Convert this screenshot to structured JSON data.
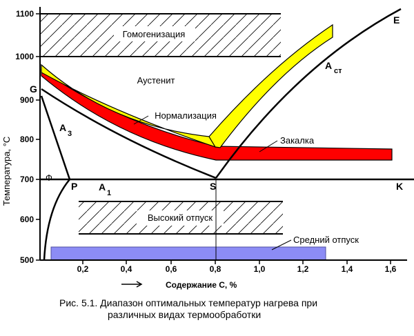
{
  "diagram": {
    "y_axis": {
      "title": "Температура, °С",
      "ticks": [
        "500",
        "600",
        "700",
        "800",
        "900",
        "1000",
        "1100"
      ]
    },
    "x_axis": {
      "title": "Содержание С, %",
      "ticks": [
        "0,2",
        "0,4",
        "0,6",
        "0,8",
        "1,0",
        "1,2",
        "1,4",
        "1,6"
      ]
    },
    "points": {
      "g": "G",
      "p": "P",
      "s": "S",
      "k": "K",
      "e": "E",
      "phi": "Ф"
    },
    "lines": {
      "a3": "A",
      "a3_sub": "3",
      "a1": "A",
      "a1_sub": "1",
      "acm": "A",
      "acm_sub": "ст"
    },
    "regions": {
      "homogenization": "Гомогенизация",
      "austenite": "Аустенит",
      "normalization": "Нормализация",
      "hardening": "Закалка",
      "high_tempering": "Высокий отпуск",
      "medium_tempering": "Средний отпуск"
    },
    "colors": {
      "normalization": "#ffff00",
      "hardening": "#ff0000",
      "medium_tempering": "#8c8cf5"
    },
    "caption_line1": "Рис. 5.1. Диапазон оптимальных температур нагрева при",
    "caption_line2": "различных видах термообработки"
  }
}
